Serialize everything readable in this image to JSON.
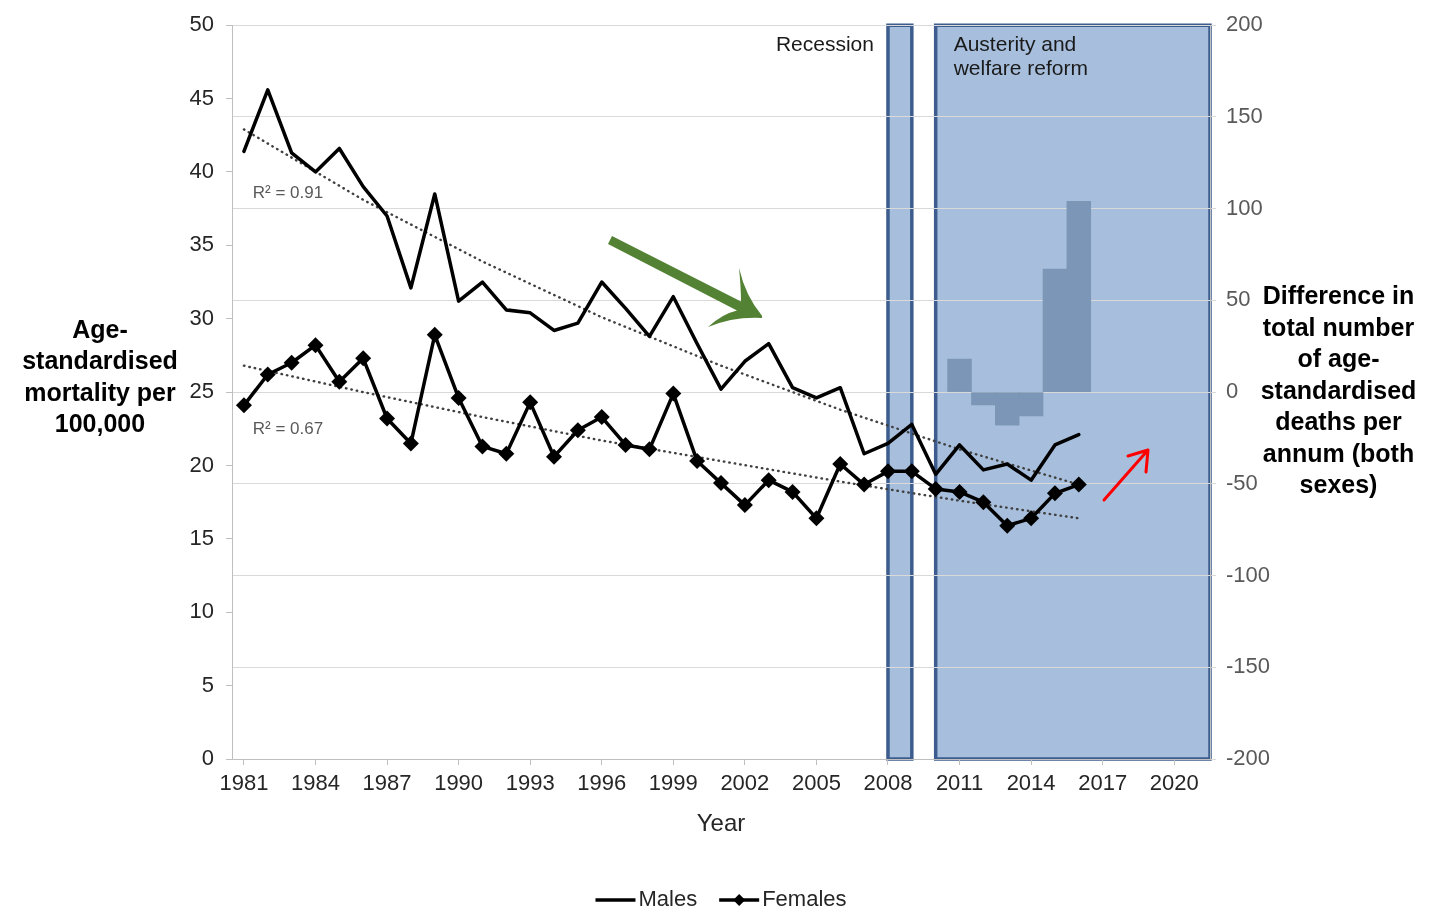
{
  "chart_data": {
    "type": "line",
    "xlabel": "Year",
    "ylabel": "Age-standardised mortality per 100,000",
    "y2label": "Difference in total number of age-standardised deaths per annum (both sexes)",
    "x": [
      1981,
      1982,
      1983,
      1984,
      1985,
      1986,
      1987,
      1988,
      1989,
      1990,
      1991,
      1992,
      1993,
      1994,
      1995,
      1996,
      1997,
      1998,
      1999,
      2000,
      2001,
      2002,
      2003,
      2004,
      2005,
      2006,
      2007,
      2008,
      2009,
      2010,
      2011,
      2012,
      2013,
      2014,
      2015,
      2016
    ],
    "series": [
      {
        "name": "Males",
        "color": "#000000",
        "marker": "none",
        "values": [
          41.4,
          45.6,
          41.3,
          40.0,
          41.6,
          39.0,
          37.0,
          32.1,
          38.5,
          31.2,
          32.5,
          30.6,
          30.4,
          29.2,
          29.7,
          32.5,
          30.7,
          28.8,
          31.5,
          28.3,
          25.2,
          27.1,
          28.3,
          25.3,
          24.6,
          25.3,
          20.8,
          21.5,
          22.8,
          19.4,
          21.4,
          19.7,
          20.1,
          19.0,
          21.4,
          22.1
        ]
      },
      {
        "name": "Females",
        "color": "#000000",
        "marker": "diamond",
        "values": [
          24.1,
          26.2,
          27.0,
          28.2,
          25.7,
          27.3,
          23.2,
          21.5,
          28.9,
          24.6,
          21.3,
          20.8,
          24.3,
          20.6,
          22.4,
          23.3,
          21.4,
          21.1,
          24.9,
          20.3,
          18.8,
          17.3,
          19.0,
          18.2,
          16.4,
          20.1,
          18.7,
          19.6,
          19.6,
          18.4,
          18.2,
          17.5,
          15.9,
          16.4,
          18.1,
          18.7
        ]
      },
      {
        "type": "line",
        "x": [
          1981,
          1986,
          1991,
          1996,
          2001,
          2006,
          2011,
          2016
        ],
        "color": "#404040",
        "marker": "none",
        "line_style": "dotted",
        "values": [
          42.9,
          38.1,
          33.9,
          30.1,
          26.8,
          23.8,
          21.1,
          18.7
        ]
      },
      {
        "type": "line",
        "x": [
          1981,
          1986,
          1991,
          1996,
          2001,
          2006,
          2011,
          2016
        ],
        "color": "#404040",
        "marker": "none",
        "line_style": "dotted",
        "values": [
          26.8,
          25.0,
          23.3,
          21.7,
          20.3,
          18.9,
          17.6,
          16.4
        ]
      },
      {
        "type": "bar",
        "axis": "y2",
        "x": [
          2011,
          2012,
          2013,
          2014,
          2015,
          2016
        ],
        "color": "#7b96b6",
        "values": [
          18,
          -7,
          -18,
          -13,
          67,
          104
        ]
      }
    ],
    "xlim": [
      1980.5,
      2021.5
    ],
    "xticks": [
      1981,
      1984,
      1987,
      1990,
      1993,
      1996,
      1999,
      2002,
      2005,
      2008,
      2011,
      2014,
      2017,
      2020
    ],
    "ylim": [
      0,
      50
    ],
    "yticks": [
      0,
      5,
      10,
      15,
      20,
      25,
      30,
      35,
      40,
      45,
      50
    ],
    "y2lim": [
      -200,
      200
    ],
    "y2ticks": [
      -200,
      -150,
      -100,
      -50,
      0,
      50,
      100,
      150,
      200
    ],
    "grid": "y2",
    "legend": "bottom",
    "bands": [
      {
        "axis": "x",
        "from": 2008,
        "to": 2009,
        "label": "Recession",
        "color": "#a7bfdd"
      },
      {
        "axis": "x",
        "from": 2010,
        "to": 2021.5,
        "label": "Austerity and welfare reform",
        "color": "#a7bfdd"
      }
    ],
    "annotations": [
      "R² = 0.91",
      "R² = 0.67"
    ]
  }
}
